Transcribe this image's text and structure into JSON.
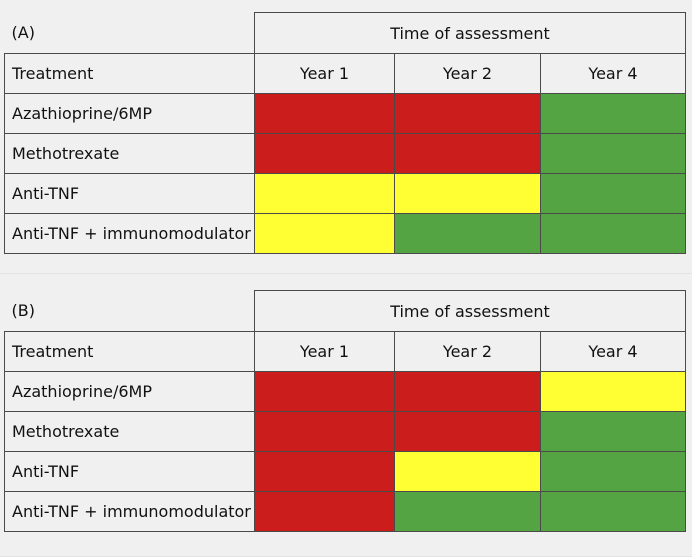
{
  "colors": {
    "red": "#cc1d1d",
    "yellow": "#ffff33",
    "green": "#54a444",
    "border": "#4a4a4a",
    "background": "#f0f0f0"
  },
  "panels": [
    {
      "label": "(A)",
      "group_header": "Time of assessment",
      "treatment_header": "Treatment",
      "columns": [
        "Year 1",
        "Year 2",
        "Year 4"
      ],
      "rows": [
        {
          "treatment": "Azathioprine/6MP",
          "cells": [
            "red",
            "red",
            "green"
          ]
        },
        {
          "treatment": "Methotrexate",
          "cells": [
            "red",
            "red",
            "green"
          ]
        },
        {
          "treatment": "Anti-TNF",
          "cells": [
            "yellow",
            "yellow",
            "green"
          ]
        },
        {
          "treatment": "Anti-TNF + immunomodulator",
          "cells": [
            "yellow",
            "green",
            "green"
          ]
        }
      ]
    },
    {
      "label": "(B)",
      "group_header": "Time of assessment",
      "treatment_header": "Treatment",
      "columns": [
        "Year 1",
        "Year 2",
        "Year 4"
      ],
      "rows": [
        {
          "treatment": "Azathioprine/6MP",
          "cells": [
            "red",
            "red",
            "yellow"
          ]
        },
        {
          "treatment": "Methotrexate",
          "cells": [
            "red",
            "red",
            "green"
          ]
        },
        {
          "treatment": "Anti-TNF",
          "cells": [
            "red",
            "yellow",
            "green"
          ]
        },
        {
          "treatment": "Anti-TNF + immunomodulator",
          "cells": [
            "red",
            "green",
            "green"
          ]
        }
      ]
    }
  ]
}
